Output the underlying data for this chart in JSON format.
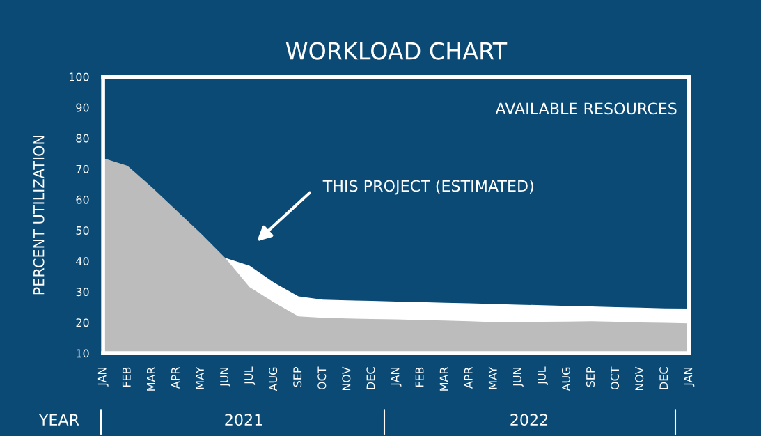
{
  "chart_data": {
    "type": "area",
    "title": "WORKLOAD CHART",
    "ylabel": "PERCENT UTILIZATION",
    "categories": [
      "JAN",
      "FEB",
      "MAR",
      "APR",
      "MAY",
      "JUN",
      "JUL",
      "AUG",
      "SEP",
      "OCT",
      "NOV",
      "DEC",
      "JAN",
      "FEB",
      "MAR",
      "APR",
      "MAY",
      "JUN",
      "JUL",
      "AUG",
      "SEP",
      "OCT",
      "NOV",
      "DEC",
      "JAN"
    ],
    "series": [
      {
        "color": "#bcbcbc",
        "values": [
          73.5,
          71,
          64,
          56.5,
          49,
          41,
          31.5,
          26.5,
          22,
          21.5,
          21.3,
          21.1,
          21,
          20.8,
          20.6,
          20.4,
          20.1,
          20.1,
          20.2,
          20.3,
          20.4,
          20.2,
          20,
          19.9,
          19.7
        ]
      },
      {
        "color": "#ffffff",
        "values": [
          null,
          null,
          null,
          null,
          null,
          41,
          38.5,
          33,
          28.5,
          27.4,
          27.2,
          27,
          26.8,
          26.6,
          26.4,
          26.2,
          26,
          25.8,
          25.6,
          25.4,
          25.2,
          25,
          24.8,
          24.6,
          24.5
        ]
      }
    ],
    "ylim": [
      10,
      100
    ],
    "yticks": [
      10,
      20,
      30,
      40,
      50,
      60,
      70,
      80,
      90,
      100
    ],
    "grid": false,
    "legend": false,
    "annotations": [
      "AVAILABLE RESOURCES",
      "THIS PROJECT (ESTIMATED)",
      "YEAR",
      "2021",
      "2022"
    ]
  }
}
